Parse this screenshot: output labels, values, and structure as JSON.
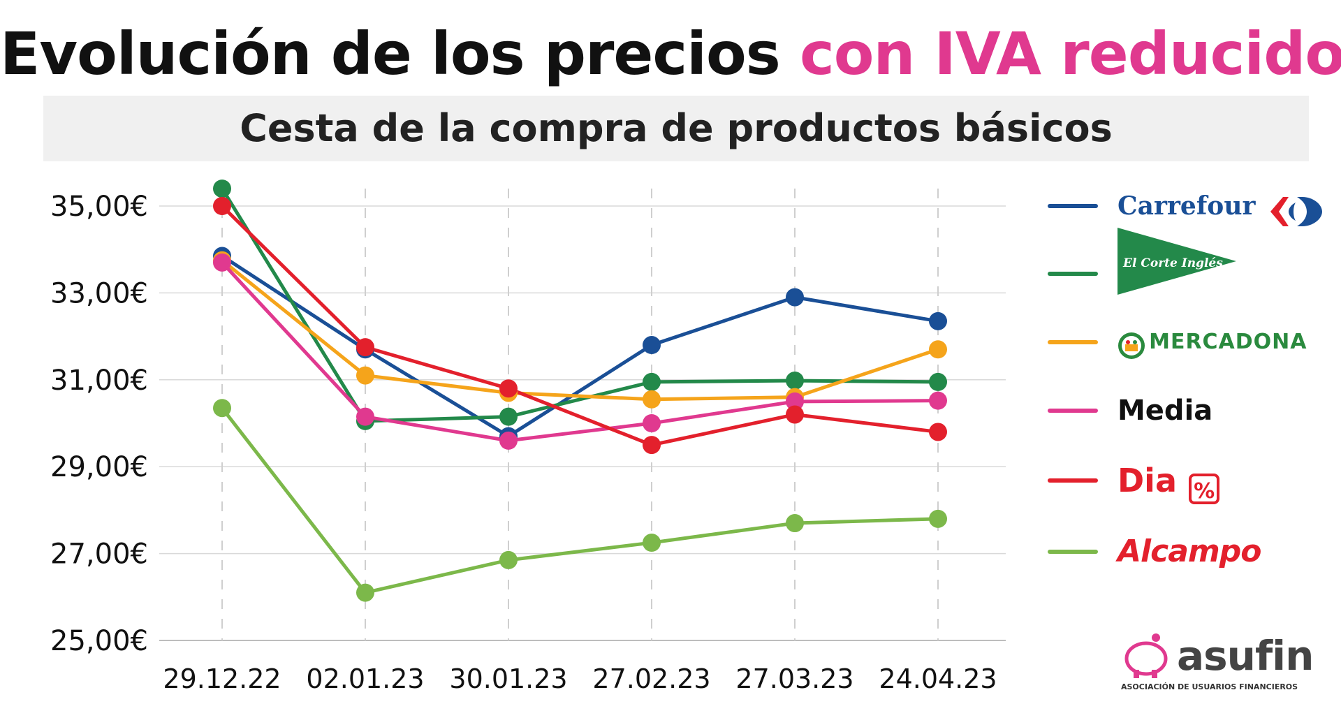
{
  "header": {
    "title_main": "Evolución de los precios",
    "title_highlight": "con IVA reducido",
    "subtitle": "Cesta de la compra de productos básicos"
  },
  "colors": {
    "highlight": "#e0398f",
    "carrefour": "#1a4f96",
    "elcorteingles": "#23894a",
    "mercadona": "#f5a41b",
    "media": "#e0398f",
    "dia": "#e3202c",
    "alcampo": "#7cb84a"
  },
  "legend": {
    "carrefour": "Carrefour",
    "elcorteingles": "El Corte Inglés",
    "mercadona": "MERCADONA",
    "media": "Media",
    "dia": "Dia",
    "dia_icon": "%",
    "alcampo": "Alcampo"
  },
  "branding": {
    "name": "asufin",
    "tagline": "ASOCIACIÓN DE USUARIOS FINANCIEROS"
  },
  "chart_data": {
    "type": "line",
    "title": "Evolución de los precios con IVA reducido",
    "subtitle": "Cesta de la compra de productos básicos",
    "categories": [
      "29.12.22",
      "02.01.23",
      "30.01.23",
      "27.02.23",
      "27.03.23",
      "24.04.23"
    ],
    "y_ticks": [
      25,
      27,
      29,
      31,
      33,
      35
    ],
    "y_tick_labels": [
      "25,00€",
      "27,00€",
      "29,00€",
      "31,00€",
      "33,00€",
      "35,00€"
    ],
    "ylim": [
      25,
      35.5
    ],
    "grid": true,
    "legend_position": "right",
    "series": [
      {
        "name": "Carrefour",
        "key": "carrefour",
        "values": [
          33.85,
          31.7,
          29.7,
          31.8,
          32.9,
          32.35
        ]
      },
      {
        "name": "El Corte Inglés",
        "key": "elcorteingles",
        "values": [
          35.4,
          30.05,
          30.15,
          30.95,
          30.98,
          30.95
        ]
      },
      {
        "name": "Mercadona",
        "key": "mercadona",
        "values": [
          33.75,
          31.1,
          30.7,
          30.55,
          30.6,
          31.7
        ]
      },
      {
        "name": "Media",
        "key": "media",
        "values": [
          33.7,
          30.15,
          29.6,
          30.0,
          30.5,
          30.52
        ]
      },
      {
        "name": "Dia",
        "key": "dia",
        "values": [
          35.0,
          31.75,
          30.8,
          29.5,
          30.2,
          29.8
        ]
      },
      {
        "name": "Alcampo",
        "key": "alcampo",
        "values": [
          30.35,
          26.1,
          26.85,
          27.25,
          27.7,
          27.8
        ]
      }
    ]
  }
}
